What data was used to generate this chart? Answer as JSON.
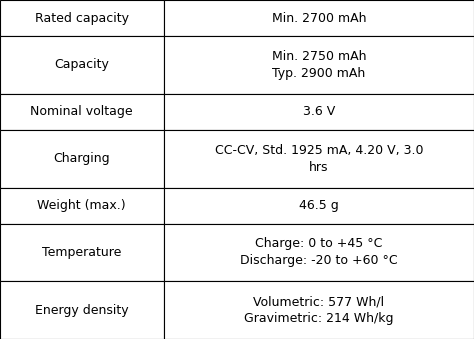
{
  "rows": [
    {
      "label": "Rated capacity",
      "value": "Min. 2700 mAh"
    },
    {
      "label": "Capacity",
      "value": "Min. 2750 mAh\nTyp. 2900 mAh"
    },
    {
      "label": "Nominal voltage",
      "value": "3.6 V"
    },
    {
      "label": "Charging",
      "value": "CC-CV, Std. 1925 mA, 4.20 V, 3.0\nhrs"
    },
    {
      "label": "Weight (max.)",
      "value": "46.5 g"
    },
    {
      "label": "Temperature",
      "value": "Charge: 0 to +45 °C\nDischarge: -20 to +60 °C"
    },
    {
      "label": "Energy density",
      "value": "Volumetric: 577 Wh/l\nGravimetric: 214 Wh/kg"
    }
  ],
  "col_split": 0.345,
  "bg_color": "#ffffff",
  "border_color": "#000000",
  "text_color": "#000000",
  "font_size": 9.0,
  "row_heights": [
    1.0,
    1.6,
    1.0,
    1.6,
    1.0,
    1.6,
    1.6
  ]
}
